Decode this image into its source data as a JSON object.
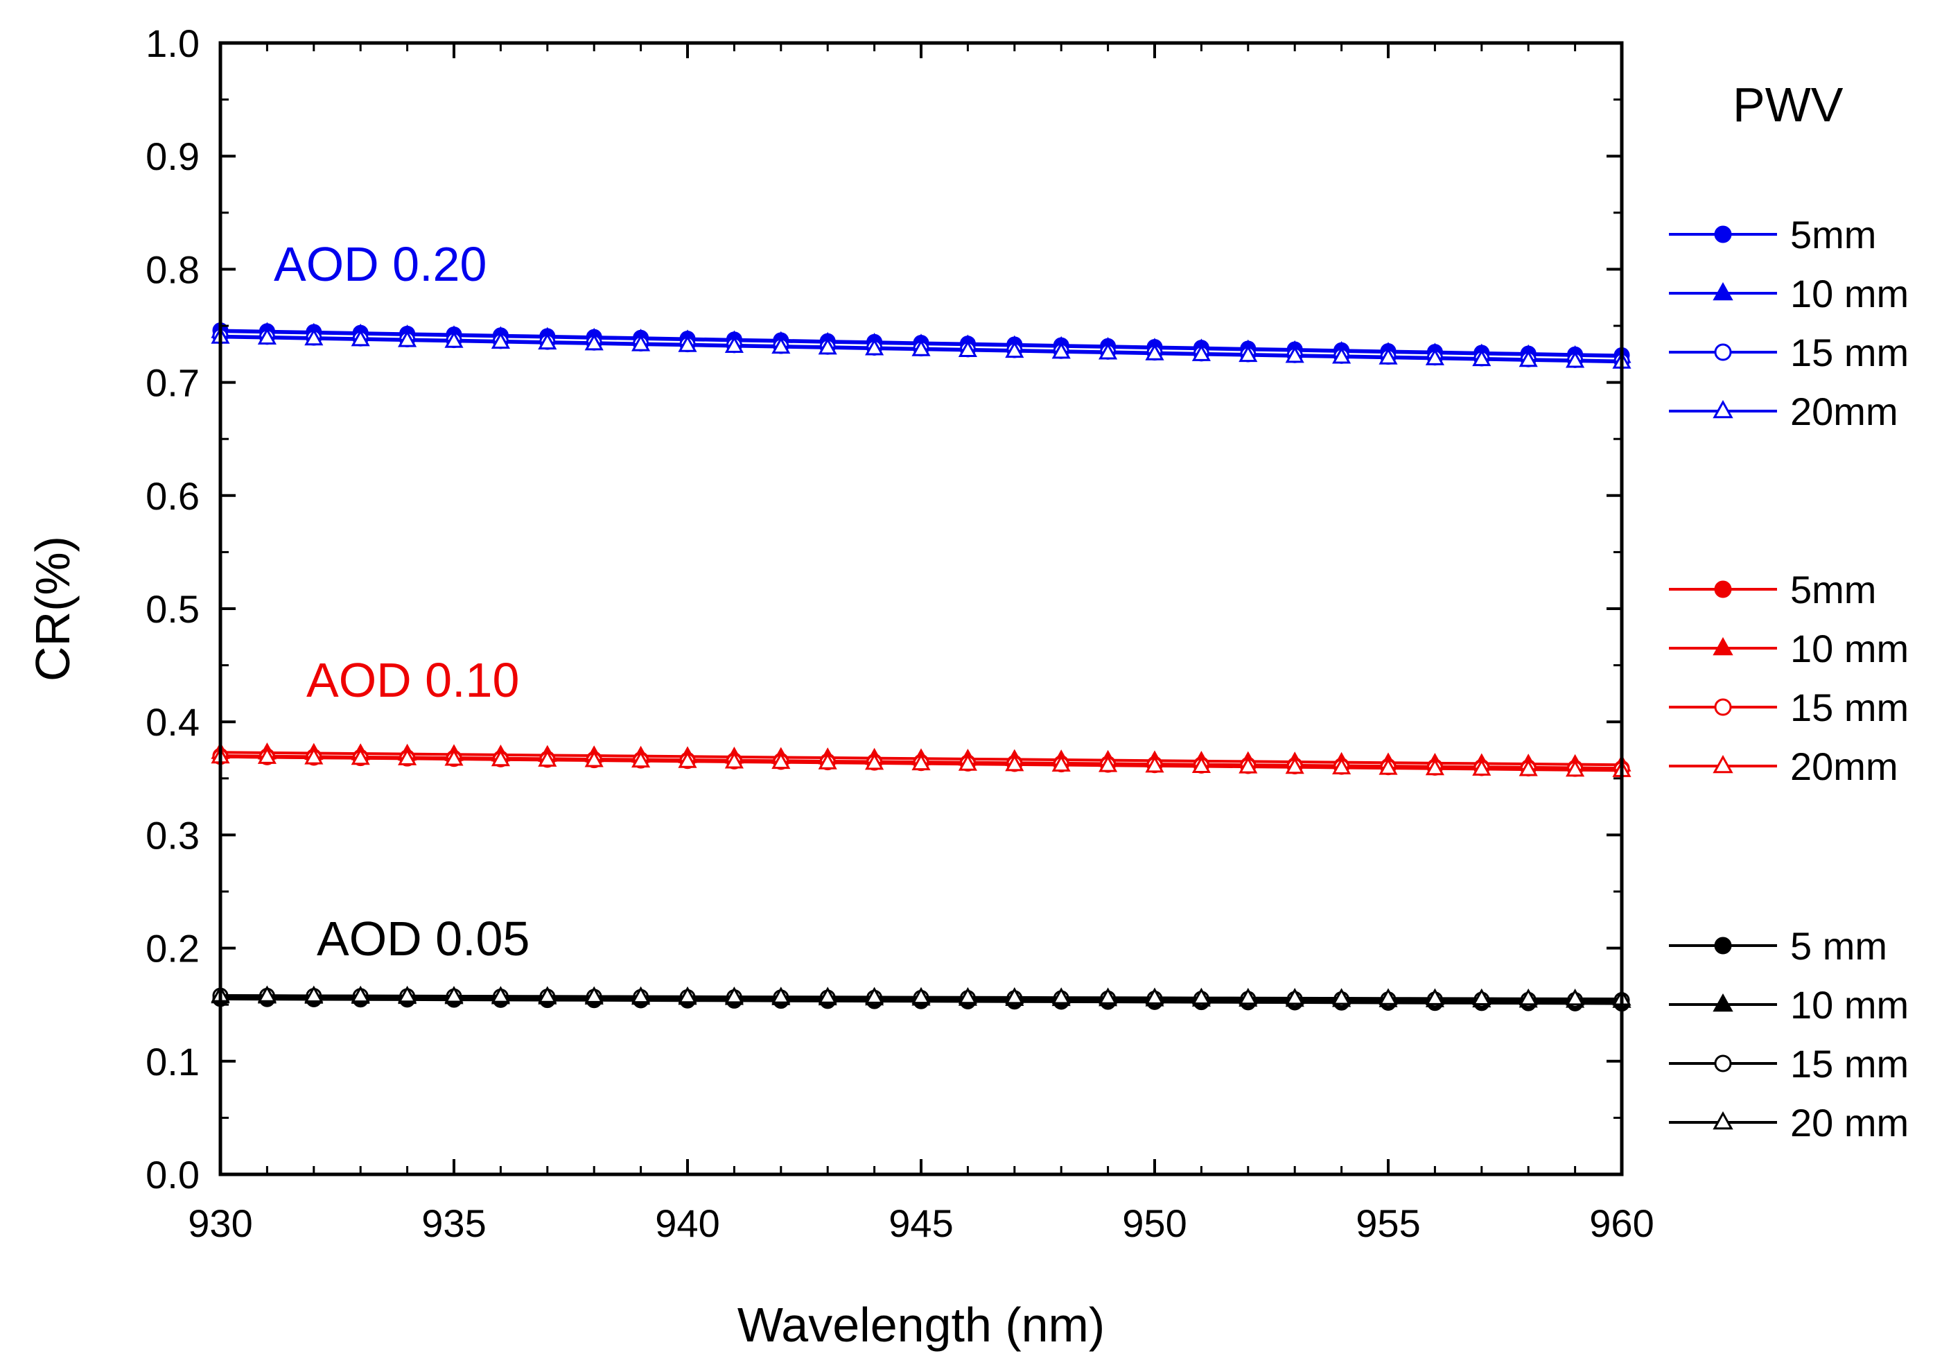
{
  "chart_data": {
    "type": "line",
    "title": "",
    "xlabel": "Wavelength (nm)",
    "ylabel": "CR(%)",
    "xlim": [
      930,
      960
    ],
    "ylim": [
      0.0,
      1.0
    ],
    "x_ticks": [
      "930",
      "935",
      "940",
      "945",
      "950",
      "955",
      "960"
    ],
    "y_ticks": [
      "0.0",
      "0.1",
      "0.2",
      "0.3",
      "0.4",
      "0.5",
      "0.6",
      "0.7",
      "0.8",
      "0.9",
      "1.0"
    ],
    "grid": false,
    "legend_title": "PWV",
    "legend_position": "right",
    "group_labels": [
      {
        "text": "AOD 0.20",
        "color": "#0000ee"
      },
      {
        "text": "AOD 0.10",
        "color": "#ee0000"
      },
      {
        "text": "AOD 0.05",
        "color": "#000000"
      }
    ],
    "groups": [
      {
        "label": "AOD 0.20",
        "color": "#0000ee",
        "series": [
          {
            "name": "5mm",
            "marker": "circle-filled",
            "y_start": 0.746,
            "y_end": 0.724
          },
          {
            "name": "10 mm",
            "marker": "triangle-filled",
            "y_start": 0.745,
            "y_end": 0.723
          },
          {
            "name": "15 mm",
            "marker": "circle-open",
            "y_start": 0.741,
            "y_end": 0.719
          },
          {
            "name": "20mm",
            "marker": "triangle-open",
            "y_start": 0.74,
            "y_end": 0.718
          }
        ]
      },
      {
        "label": "AOD 0.10",
        "color": "#ee0000",
        "series": [
          {
            "name": "5mm",
            "marker": "circle-filled",
            "y_start": 0.37,
            "y_end": 0.359
          },
          {
            "name": "10 mm",
            "marker": "triangle-filled",
            "y_start": 0.373,
            "y_end": 0.362
          },
          {
            "name": "15 mm",
            "marker": "circle-open",
            "y_start": 0.369,
            "y_end": 0.358
          },
          {
            "name": "20mm",
            "marker": "triangle-open",
            "y_start": 0.369,
            "y_end": 0.357
          }
        ]
      },
      {
        "label": "AOD 0.05",
        "color": "#000000",
        "series": [
          {
            "name": "5 mm",
            "marker": "circle-filled",
            "y_start": 0.155,
            "y_end": 0.151
          },
          {
            "name": "10 mm",
            "marker": "triangle-filled",
            "y_start": 0.157,
            "y_end": 0.153
          },
          {
            "name": "15 mm",
            "marker": "circle-open",
            "y_start": 0.158,
            "y_end": 0.154
          },
          {
            "name": "20 mm",
            "marker": "triangle-open",
            "y_start": 0.158,
            "y_end": 0.155
          }
        ]
      }
    ],
    "x_start": 930,
    "x_end": 960,
    "x_step": 1
  }
}
